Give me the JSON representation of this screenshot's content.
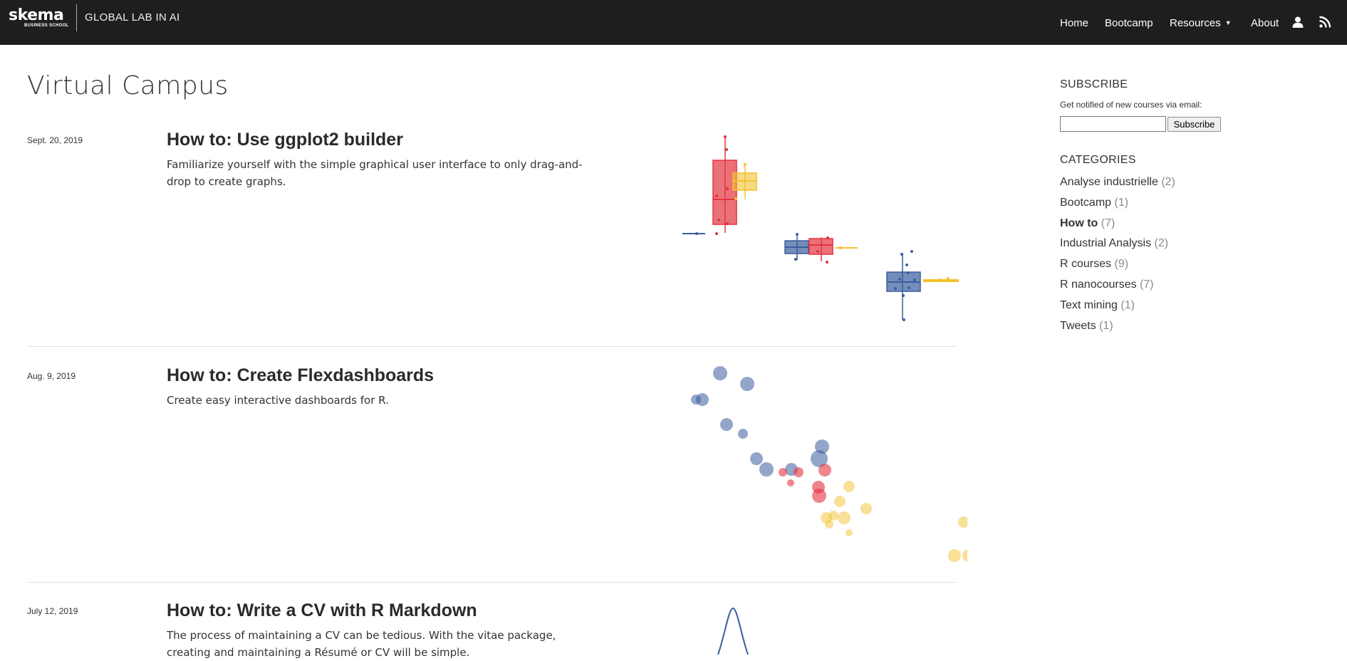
{
  "header": {
    "logo_text": "skema",
    "logo_subtext": "BUSINESS SCHOOL",
    "site_title": "GLOBAL LAB IN AI",
    "nav": [
      {
        "label": "Home"
      },
      {
        "label": "Bootcamp"
      },
      {
        "label": "Resources"
      },
      {
        "label": "About"
      }
    ],
    "icons": [
      "user-icon",
      "rss-icon",
      "chevron-down-icon"
    ]
  },
  "main": {
    "title": "Virtual Campus",
    "posts": [
      {
        "date": "Sept. 20, 2019",
        "title": "How to: Use ggplot2 builder",
        "description": "Familiarize yourself with the simple graphical user interface to only drag-and-drop to create graphs."
      },
      {
        "date": "Aug. 9, 2019",
        "title": "How to: Create Flexdashboards",
        "description": "Create easy interactive dashboards for R."
      },
      {
        "date": "July 12, 2019",
        "title": "How to: Write a CV with R Markdown",
        "description": "The process of maintaining a CV can be tedious. With the vitae package, creating and maintaining a Résumé or CV will be simple."
      }
    ]
  },
  "sidebar": {
    "subscribe_heading": "SUBSCRIBE",
    "subscribe_note": "Get notified of new courses via email:",
    "email_value": "",
    "subscribe_button": "Subscribe",
    "categories_heading": "CATEGORIES",
    "categories": [
      {
        "name": "Analyse industrielle",
        "count": "(2)",
        "active": false
      },
      {
        "name": "Bootcamp",
        "count": "(1)",
        "active": false
      },
      {
        "name": "How to",
        "count": "(7)",
        "active": true
      },
      {
        "name": "Industrial Analysis",
        "count": "(2)",
        "active": false
      },
      {
        "name": "R courses",
        "count": "(9)",
        "active": false
      },
      {
        "name": "R nanocourses",
        "count": "(7)",
        "active": false
      },
      {
        "name": "Text mining",
        "count": "(1)",
        "active": false
      },
      {
        "name": "Tweets",
        "count": "(1)",
        "active": false
      }
    ]
  },
  "colors": {
    "topbar": "#1e1e1e",
    "red": "#e2343f",
    "yellow": "#f2c12e",
    "blue": "#3b5d9e"
  }
}
